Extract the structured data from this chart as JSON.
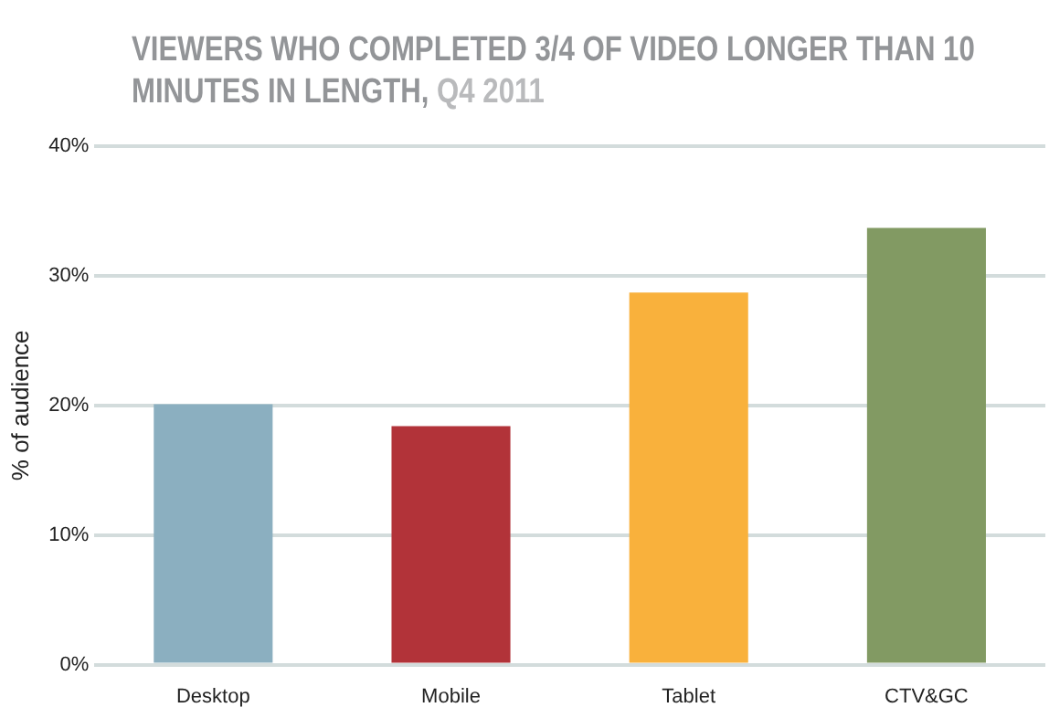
{
  "chart_data": {
    "type": "bar",
    "title": "VIEWERS WHO COMPLETED 3/4 OF VIDEO LONGER THAN 10 MINUTES IN LENGTH,",
    "subtitle": "Q4 2011",
    "ylabel": "% of audience",
    "categories": [
      "Desktop",
      "Mobile",
      "Tablet",
      "CTV&GC"
    ],
    "values": [
      20.1,
      18.4,
      28.7,
      33.7
    ],
    "colors": [
      "#8bafc0",
      "#b23339",
      "#f9b13c",
      "#829a63"
    ],
    "ylim": [
      0,
      40
    ],
    "yticks": [
      {
        "value": 0,
        "label": "0%"
      },
      {
        "value": 10,
        "label": "10%"
      },
      {
        "value": 20,
        "label": "20%"
      },
      {
        "value": 30,
        "label": "30%"
      },
      {
        "value": 40,
        "label": "40%"
      }
    ],
    "grid": "y",
    "legend": false
  }
}
